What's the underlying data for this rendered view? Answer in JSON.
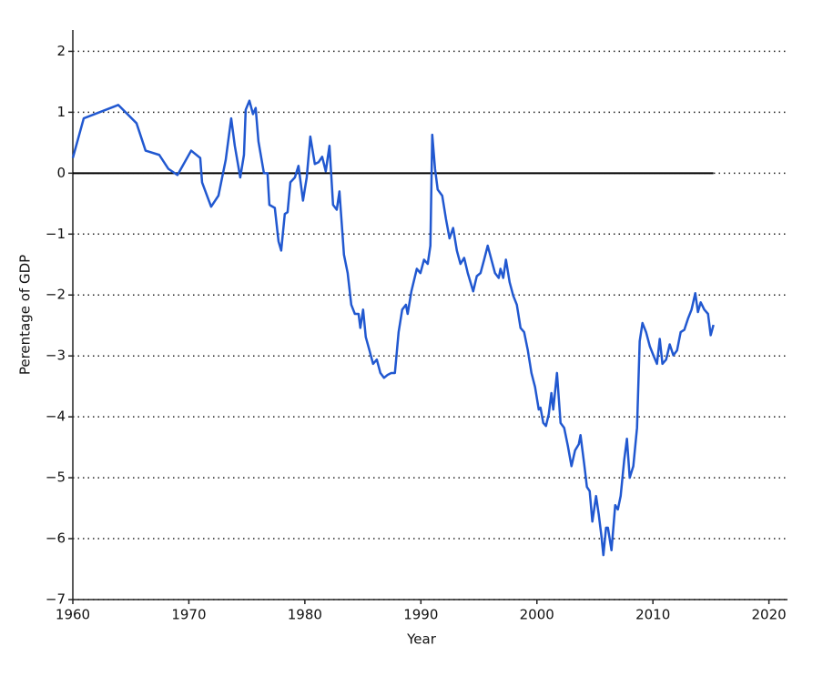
{
  "chart_data": {
    "type": "line",
    "xlabel": "Year",
    "ylabel": "Perentage of GDP",
    "color": "#2158d0",
    "grid": true,
    "reference_line": 0,
    "xlim": [
      1960,
      2021.6
    ],
    "ylim": [
      -7,
      2.35
    ],
    "xticks": [
      1960,
      1970,
      1980,
      1990,
      2000,
      2010,
      2020
    ],
    "yticks": [
      {
        "value": -7,
        "label": "−7"
      },
      {
        "value": -6,
        "label": "−6"
      },
      {
        "value": -5,
        "label": "−5"
      },
      {
        "value": -4,
        "label": "−4"
      },
      {
        "value": -3,
        "label": "−3"
      },
      {
        "value": -2,
        "label": "−2"
      },
      {
        "value": -1,
        "label": "−1"
      },
      0,
      1,
      2
    ],
    "x": [
      1960.0,
      1960.94,
      1963.92,
      1965.49,
      1966.27,
      1967.45,
      1968.24,
      1969.02,
      1970.2,
      1970.98,
      1971.14,
      1971.92,
      1972.55,
      1973.18,
      1973.65,
      1973.96,
      1974.43,
      1974.75,
      1974.9,
      1975.22,
      1975.53,
      1975.76,
      1976.0,
      1976.47,
      1976.78,
      1976.94,
      1977.41,
      1977.73,
      1977.96,
      1978.27,
      1978.51,
      1978.75,
      1979.14,
      1979.45,
      1979.84,
      1980.16,
      1980.47,
      1980.86,
      1981.18,
      1981.49,
      1981.8,
      1982.12,
      1982.43,
      1982.75,
      1982.98,
      1983.37,
      1983.69,
      1984.0,
      1984.31,
      1984.63,
      1984.78,
      1985.02,
      1985.25,
      1985.57,
      1985.88,
      1986.2,
      1986.51,
      1986.82,
      1987.14,
      1987.45,
      1987.76,
      1988.08,
      1988.39,
      1988.71,
      1988.86,
      1989.18,
      1989.65,
      1989.96,
      1990.27,
      1990.59,
      1990.82,
      1990.98,
      1991.22,
      1991.45,
      1991.84,
      1992.16,
      1992.47,
      1992.78,
      1993.1,
      1993.41,
      1993.73,
      1994.04,
      1994.51,
      1994.82,
      1995.14,
      1995.45,
      1995.76,
      1996.08,
      1996.39,
      1996.71,
      1996.86,
      1997.1,
      1997.33,
      1997.65,
      1997.96,
      1998.27,
      1998.59,
      1998.9,
      1999.22,
      1999.53,
      1999.84,
      2000.16,
      2000.31,
      2000.55,
      2000.78,
      2001.02,
      2001.25,
      2001.41,
      2001.73,
      2002.04,
      2002.35,
      2002.67,
      2002.98,
      2003.29,
      2003.61,
      2003.76,
      2004.08,
      2004.31,
      2004.55,
      2004.78,
      2005.1,
      2005.33,
      2005.57,
      2005.73,
      2005.96,
      2006.12,
      2006.43,
      2006.75,
      2006.98,
      2007.22,
      2007.53,
      2007.76,
      2008.0,
      2008.31,
      2008.63,
      2008.86,
      2009.1,
      2009.41,
      2009.73,
      2010.04,
      2010.35,
      2010.59,
      2010.82,
      2011.14,
      2011.45,
      2011.76,
      2012.08,
      2012.39,
      2012.71,
      2013.02,
      2013.33,
      2013.65,
      2013.88,
      2014.12,
      2014.43,
      2014.75,
      2014.98,
      2015.22
    ],
    "values": [
      0.25,
      0.9,
      1.12,
      0.82,
      0.37,
      0.3,
      0.07,
      -0.03,
      0.37,
      0.25,
      -0.15,
      -0.55,
      -0.37,
      0.22,
      0.9,
      0.45,
      -0.07,
      0.3,
      1.04,
      1.19,
      0.97,
      1.07,
      0.52,
      0,
      0,
      -0.52,
      -0.57,
      -1.12,
      -1.27,
      -0.67,
      -0.64,
      -0.15,
      -0.07,
      0.12,
      -0.45,
      -0.07,
      0.6,
      0.15,
      0.18,
      0.27,
      0.03,
      0.45,
      -0.52,
      -0.6,
      -0.3,
      -1.34,
      -1.64,
      -2.16,
      -2.31,
      -2.31,
      -2.54,
      -2.24,
      -2.69,
      -2.91,
      -3.13,
      -3.06,
      -3.28,
      -3.36,
      -3.31,
      -3.28,
      -3.28,
      -2.61,
      -2.24,
      -2.16,
      -2.31,
      -1.94,
      -1.57,
      -1.64,
      -1.42,
      -1.49,
      -1.19,
      0.63,
      0.07,
      -0.27,
      -0.37,
      -0.75,
      -1.07,
      -0.9,
      -1.27,
      -1.49,
      -1.39,
      -1.64,
      -1.94,
      -1.69,
      -1.64,
      -1.42,
      -1.19,
      -1.42,
      -1.64,
      -1.72,
      -1.57,
      -1.72,
      -1.42,
      -1.79,
      -2.01,
      -2.16,
      -2.54,
      -2.61,
      -2.91,
      -3.28,
      -3.51,
      -3.88,
      -3.85,
      -4.1,
      -4.15,
      -3.96,
      -3.61,
      -3.88,
      -3.28,
      -4.1,
      -4.18,
      -4.48,
      -4.81,
      -4.55,
      -4.45,
      -4.3,
      -4.78,
      -5.15,
      -5.22,
      -5.72,
      -5.3,
      -5.6,
      -5.97,
      -6.27,
      -5.82,
      -5.82,
      -6.19,
      -5.45,
      -5.52,
      -5.3,
      -4.7,
      -4.36,
      -5.0,
      -4.81,
      -4.18,
      -2.76,
      -2.46,
      -2.61,
      -2.84,
      -2.99,
      -3.13,
      -2.72,
      -3.13,
      -3.06,
      -2.81,
      -2.99,
      -2.91,
      -2.61,
      -2.57,
      -2.39,
      -2.24,
      -1.97,
      -2.28,
      -2.12,
      -2.24,
      -2.31,
      -2.66,
      -2.49
    ]
  }
}
